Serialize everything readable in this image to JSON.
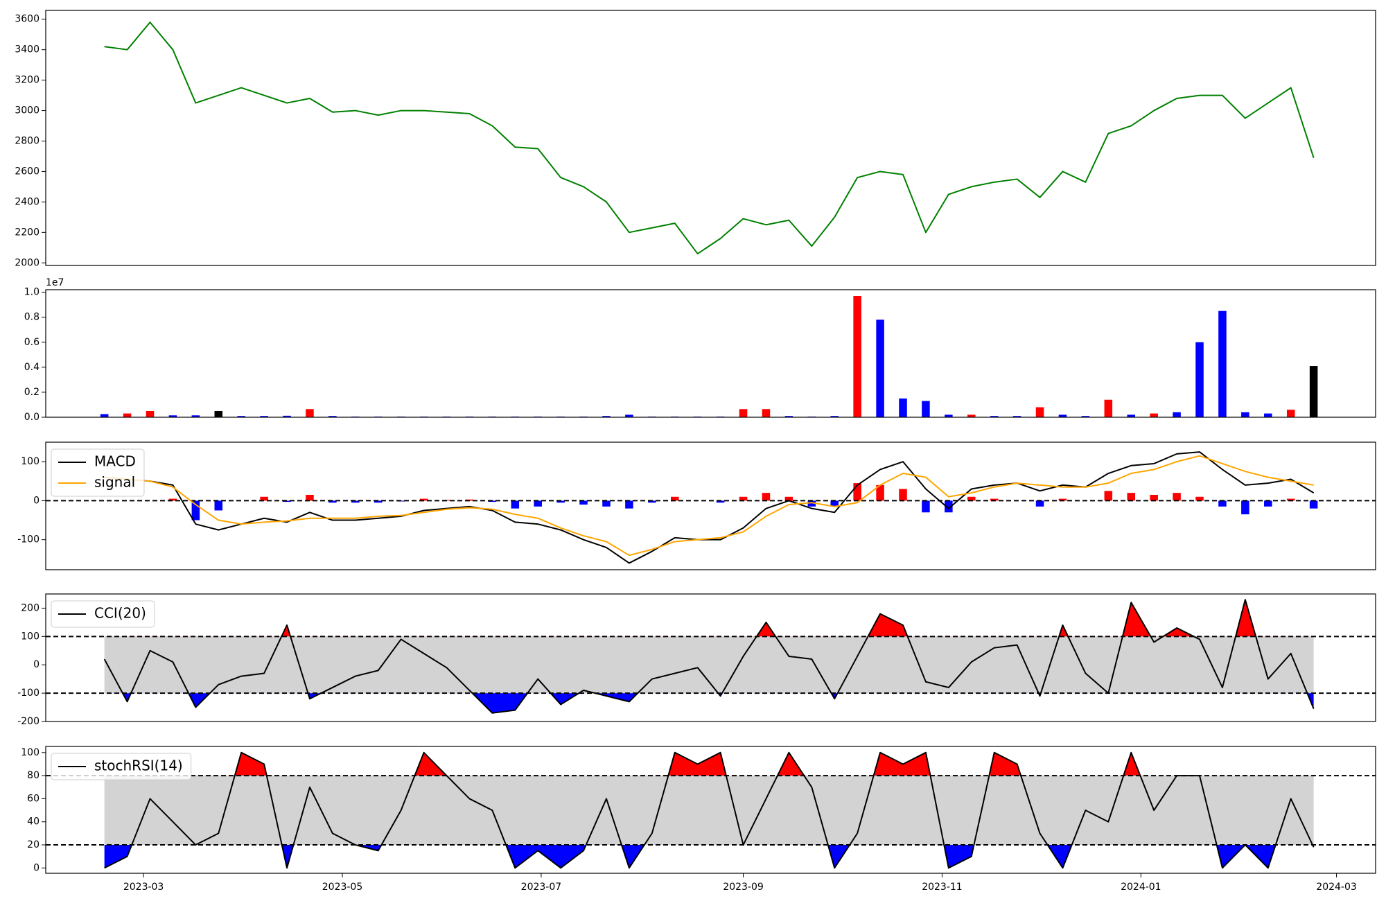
{
  "chart_data": [
    {
      "type": "line",
      "x": [
        "2023-02-17",
        "2023-02-24",
        "2023-03-03",
        "2023-03-10",
        "2023-03-17",
        "2023-03-24",
        "2023-03-31",
        "2023-04-07",
        "2023-04-14",
        "2023-04-21",
        "2023-04-28",
        "2023-05-05",
        "2023-05-12",
        "2023-05-19",
        "2023-05-26",
        "2023-06-02",
        "2023-06-09",
        "2023-06-16",
        "2023-06-23",
        "2023-06-30",
        "2023-07-07",
        "2023-07-14",
        "2023-07-21",
        "2023-07-28",
        "2023-08-04",
        "2023-08-11",
        "2023-08-18",
        "2023-08-25",
        "2023-09-01",
        "2023-09-08",
        "2023-09-15",
        "2023-09-22",
        "2023-09-29",
        "2023-10-06",
        "2023-10-13",
        "2023-10-20",
        "2023-10-27",
        "2023-11-03",
        "2023-11-10",
        "2023-11-17",
        "2023-11-24",
        "2023-12-01",
        "2023-12-08",
        "2023-12-15",
        "2023-12-22",
        "2023-12-29",
        "2024-01-05",
        "2024-01-12",
        "2024-01-19",
        "2024-01-26",
        "2024-02-02",
        "2024-02-09",
        "2024-02-16",
        "2024-02-23"
      ],
      "series": [
        {
          "color": "#008000",
          "values": [
            3420,
            3400,
            3580,
            3400,
            3050,
            3100,
            3150,
            3100,
            3050,
            3080,
            2990,
            3000,
            2970,
            3000,
            3000,
            2990,
            2980,
            2900,
            2760,
            2750,
            2560,
            2500,
            2400,
            2200,
            2230,
            2260,
            2060,
            2160,
            2290,
            2250,
            2280,
            2110,
            2300,
            2560,
            2600,
            2580,
            2200,
            2450,
            2500,
            2530,
            2550,
            2430,
            2600,
            2530,
            2850,
            2900,
            3000,
            3080,
            3100,
            3100,
            2950,
            3050,
            3150,
            2690
          ]
        }
      ],
      "xlim": [
        "2023-01-30",
        "2024-03-13"
      ],
      "ylim": [
        1983,
        3658
      ],
      "yticks": [
        2000,
        2200,
        2400,
        2600,
        2800,
        3000,
        3200,
        3400,
        3600
      ]
    },
    {
      "type": "bar",
      "x": [
        "2023-02-17",
        "2023-02-24",
        "2023-03-03",
        "2023-03-10",
        "2023-03-17",
        "2023-03-24",
        "2023-03-31",
        "2023-04-07",
        "2023-04-14",
        "2023-04-21",
        "2023-04-28",
        "2023-05-05",
        "2023-05-12",
        "2023-05-19",
        "2023-05-26",
        "2023-06-02",
        "2023-06-09",
        "2023-06-16",
        "2023-06-23",
        "2023-06-30",
        "2023-07-07",
        "2023-07-14",
        "2023-07-21",
        "2023-07-28",
        "2023-08-04",
        "2023-08-11",
        "2023-08-18",
        "2023-08-25",
        "2023-09-01",
        "2023-09-08",
        "2023-09-15",
        "2023-09-22",
        "2023-09-29",
        "2023-10-06",
        "2023-10-13",
        "2023-10-20",
        "2023-10-27",
        "2023-11-03",
        "2023-11-10",
        "2023-11-17",
        "2023-11-24",
        "2023-12-01",
        "2023-12-08",
        "2023-12-15",
        "2023-12-22",
        "2023-12-29",
        "2024-01-05",
        "2024-01-12",
        "2024-01-19",
        "2024-01-26",
        "2024-02-02",
        "2024-02-09",
        "2024-02-16",
        "2024-02-23"
      ],
      "values": [
        250000,
        300000,
        500000,
        150000,
        150000,
        500000,
        100000,
        100000,
        120000,
        650000,
        100000,
        50000,
        50000,
        50000,
        50000,
        50000,
        50000,
        50000,
        50000,
        50000,
        50000,
        50000,
        100000,
        200000,
        50000,
        50000,
        50000,
        50000,
        650000,
        650000,
        100000,
        50000,
        100000,
        9700000,
        7800000,
        1500000,
        1300000,
        200000,
        200000,
        100000,
        100000,
        800000,
        200000,
        100000,
        1400000,
        200000,
        300000,
        400000,
        6000000,
        8500000,
        400000,
        300000,
        600000,
        4100000
      ],
      "colors": [
        "#0000ff",
        "#ff0000",
        "#ff0000",
        "#0000ff",
        "#0000ff",
        "#000000",
        "#0000ff",
        "#0000ff",
        "#0000ff",
        "#ff0000",
        "#0000ff",
        "#0000ff",
        "#0000ff",
        "#0000ff",
        "#0000ff",
        "#0000ff",
        "#0000ff",
        "#0000ff",
        "#0000ff",
        "#0000ff",
        "#0000ff",
        "#0000ff",
        "#0000ff",
        "#0000ff",
        "#0000ff",
        "#0000ff",
        "#0000ff",
        "#0000ff",
        "#ff0000",
        "#ff0000",
        "#0000ff",
        "#0000ff",
        "#0000ff",
        "#ff0000",
        "#0000ff",
        "#0000ff",
        "#0000ff",
        "#0000ff",
        "#ff0000",
        "#0000ff",
        "#0000ff",
        "#ff0000",
        "#0000ff",
        "#0000ff",
        "#ff0000",
        "#0000ff",
        "#ff0000",
        "#0000ff",
        "#0000ff",
        "#0000ff",
        "#0000ff",
        "#0000ff",
        "#ff0000",
        "#000000"
      ],
      "offset_text": "1e7",
      "xlim": [
        "2023-01-30",
        "2024-03-13"
      ],
      "ylim": [
        0,
        10200000
      ],
      "yticks": [
        {
          "value": 0,
          "label": "0.0"
        },
        {
          "value": 2000000,
          "label": "0.2"
        },
        {
          "value": 4000000,
          "label": "0.4"
        },
        {
          "value": 6000000,
          "label": "0.6"
        },
        {
          "value": 8000000,
          "label": "0.8"
        },
        {
          "value": 10000000,
          "label": "1.0"
        }
      ]
    },
    {
      "type": "line",
      "x": [
        "2023-02-17",
        "2023-02-24",
        "2023-03-03",
        "2023-03-10",
        "2023-03-17",
        "2023-03-24",
        "2023-03-31",
        "2023-04-07",
        "2023-04-14",
        "2023-04-21",
        "2023-04-28",
        "2023-05-05",
        "2023-05-12",
        "2023-05-19",
        "2023-05-26",
        "2023-06-02",
        "2023-06-09",
        "2023-06-16",
        "2023-06-23",
        "2023-06-30",
        "2023-07-07",
        "2023-07-14",
        "2023-07-21",
        "2023-07-28",
        "2023-08-04",
        "2023-08-11",
        "2023-08-18",
        "2023-08-25",
        "2023-09-01",
        "2023-09-08",
        "2023-09-15",
        "2023-09-22",
        "2023-09-29",
        "2023-10-06",
        "2023-10-13",
        "2023-10-20",
        "2023-10-27",
        "2023-11-03",
        "2023-11-10",
        "2023-11-17",
        "2023-11-24",
        "2023-12-01",
        "2023-12-08",
        "2023-12-15",
        "2023-12-22",
        "2023-12-29",
        "2024-01-05",
        "2024-01-12",
        "2024-01-19",
        "2024-01-26",
        "2024-02-02",
        "2024-02-09",
        "2024-02-16",
        "2024-02-23"
      ],
      "series": [
        {
          "name": "MACD",
          "color": "#000000",
          "values": [
            60,
            55,
            50,
            40,
            -60,
            -75,
            -60,
            -45,
            -55,
            -30,
            -50,
            -50,
            -45,
            -40,
            -25,
            -20,
            -15,
            -25,
            -55,
            -60,
            -75,
            -100,
            -120,
            -160,
            -130,
            -95,
            -100,
            -100,
            -70,
            -20,
            0,
            -20,
            -30,
            40,
            80,
            100,
            30,
            -20,
            30,
            40,
            45,
            25,
            40,
            35,
            70,
            90,
            95,
            120,
            125,
            80,
            40,
            45,
            55,
            20
          ]
        },
        {
          "name": "signal",
          "color": "#ffa500",
          "values": [
            60,
            55,
            50,
            35,
            -10,
            -50,
            -60,
            -55,
            -52,
            -45,
            -45,
            -45,
            -40,
            -38,
            -30,
            -22,
            -18,
            -22,
            -35,
            -45,
            -70,
            -90,
            -105,
            -140,
            -125,
            -105,
            -100,
            -95,
            -80,
            -40,
            -10,
            -5,
            -15,
            -5,
            40,
            70,
            60,
            10,
            20,
            35,
            45,
            40,
            35,
            35,
            45,
            70,
            80,
            100,
            115,
            95,
            75,
            60,
            50,
            40
          ]
        }
      ],
      "histogram": {
        "pos_color": "#ff0000",
        "neg_color": "#0000ff",
        "values": [
          0,
          0,
          0,
          5,
          -50,
          -25,
          0,
          10,
          -3,
          15,
          -5,
          -5,
          -5,
          -2,
          5,
          2,
          3,
          -3,
          -20,
          -15,
          -5,
          -10,
          -15,
          -20,
          -5,
          10,
          0,
          -5,
          10,
          20,
          10,
          -15,
          -15,
          45,
          40,
          30,
          -30,
          -30,
          10,
          5,
          0,
          -15,
          5,
          0,
          25,
          20,
          15,
          20,
          10,
          -15,
          -35,
          -15,
          5,
          -20
        ]
      },
      "hlines": [
        0
      ],
      "legend": "upper left",
      "xlim": [
        "2023-01-30",
        "2024-03-13"
      ],
      "ylim": [
        -177,
        150
      ],
      "yticks": [
        -100,
        0,
        100
      ]
    },
    {
      "type": "line",
      "x": [
        "2023-02-17",
        "2023-02-24",
        "2023-03-03",
        "2023-03-10",
        "2023-03-17",
        "2023-03-24",
        "2023-03-31",
        "2023-04-07",
        "2023-04-14",
        "2023-04-21",
        "2023-04-28",
        "2023-05-05",
        "2023-05-12",
        "2023-05-19",
        "2023-05-26",
        "2023-06-02",
        "2023-06-09",
        "2023-06-16",
        "2023-06-23",
        "2023-06-30",
        "2023-07-07",
        "2023-07-14",
        "2023-07-21",
        "2023-07-28",
        "2023-08-04",
        "2023-08-11",
        "2023-08-18",
        "2023-08-25",
        "2023-09-01",
        "2023-09-08",
        "2023-09-15",
        "2023-09-22",
        "2023-09-29",
        "2023-10-06",
        "2023-10-13",
        "2023-10-20",
        "2023-10-27",
        "2023-11-03",
        "2023-11-10",
        "2023-11-17",
        "2023-11-24",
        "2023-12-01",
        "2023-12-08",
        "2023-12-15",
        "2023-12-22",
        "2023-12-29",
        "2024-01-05",
        "2024-01-12",
        "2024-01-19",
        "2024-01-26",
        "2024-02-02",
        "2024-02-09",
        "2024-02-16",
        "2024-02-23"
      ],
      "series": [
        {
          "name": "CCI(20)",
          "color": "#000000",
          "values": [
            20,
            -130,
            50,
            10,
            -150,
            -70,
            -40,
            -30,
            140,
            -120,
            -80,
            -40,
            -20,
            90,
            40,
            -10,
            -90,
            -170,
            -160,
            -50,
            -140,
            -90,
            -110,
            -130,
            -50,
            -30,
            -10,
            -110,
            30,
            150,
            30,
            20,
            -120,
            30,
            180,
            140,
            -60,
            -80,
            10,
            60,
            70,
            -110,
            140,
            -30,
            -100,
            220,
            80,
            130,
            90,
            -80,
            230,
            -50,
            40,
            -155
          ]
        }
      ],
      "hlines": [
        100,
        -100
      ],
      "band_color": "#d3d3d3",
      "above_color": "#ff0000",
      "below_color": "#0000ff",
      "legend": "upper left",
      "xlim": [
        "2023-01-30",
        "2024-03-13"
      ],
      "ylim": [
        -200,
        250
      ],
      "yticks": [
        -200,
        -100,
        0,
        100,
        200
      ]
    },
    {
      "type": "line",
      "x": [
        "2023-02-17",
        "2023-02-24",
        "2023-03-03",
        "2023-03-10",
        "2023-03-17",
        "2023-03-24",
        "2023-03-31",
        "2023-04-07",
        "2023-04-14",
        "2023-04-21",
        "2023-04-28",
        "2023-05-05",
        "2023-05-12",
        "2023-05-19",
        "2023-05-26",
        "2023-06-02",
        "2023-06-09",
        "2023-06-16",
        "2023-06-23",
        "2023-06-30",
        "2023-07-07",
        "2023-07-14",
        "2023-07-21",
        "2023-07-28",
        "2023-08-04",
        "2023-08-11",
        "2023-08-18",
        "2023-08-25",
        "2023-09-01",
        "2023-09-08",
        "2023-09-15",
        "2023-09-22",
        "2023-09-29",
        "2023-10-06",
        "2023-10-13",
        "2023-10-20",
        "2023-10-27",
        "2023-11-03",
        "2023-11-10",
        "2023-11-17",
        "2023-11-24",
        "2023-12-01",
        "2023-12-08",
        "2023-12-15",
        "2023-12-22",
        "2023-12-29",
        "2024-01-05",
        "2024-01-12",
        "2024-01-19",
        "2024-01-26",
        "2024-02-02",
        "2024-02-09",
        "2024-02-16",
        "2024-02-23"
      ],
      "series": [
        {
          "name": "stochRSI(14)",
          "color": "#000000",
          "values": [
            0,
            10,
            60,
            40,
            20,
            30,
            100,
            90,
            0,
            70,
            30,
            20,
            15,
            50,
            100,
            80,
            60,
            50,
            0,
            15,
            0,
            15,
            60,
            0,
            30,
            100,
            90,
            100,
            20,
            60,
            100,
            70,
            0,
            30,
            100,
            90,
            100,
            0,
            10,
            100,
            90,
            30,
            0,
            50,
            40,
            100,
            50,
            80,
            80,
            0,
            20,
            0,
            60,
            18
          ]
        }
      ],
      "hlines": [
        80,
        20
      ],
      "band_color": "#d3d3d3",
      "above_color": "#ff0000",
      "below_color": "#0000ff",
      "legend": "upper left",
      "xlim": [
        "2023-01-30",
        "2024-03-13"
      ],
      "ylim": [
        -4.6,
        105.3
      ],
      "yticks": [
        0,
        20,
        40,
        60,
        80,
        100
      ],
      "xticks": [
        "2023-03",
        "2023-05",
        "2023-07",
        "2023-09",
        "2023-11",
        "2024-01",
        "2024-03"
      ]
    }
  ]
}
